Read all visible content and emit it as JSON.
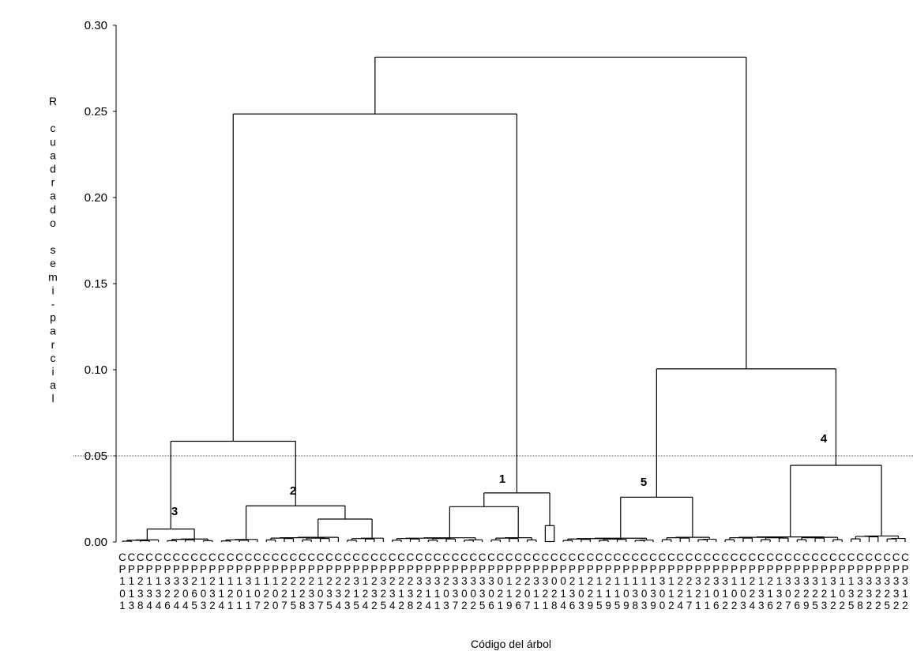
{
  "chart_data": {
    "type": "dendrogram",
    "ylabel": "R cuadrado semi-parcial",
    "xlabel": "Código del árbol",
    "ylim": [
      0,
      0.3
    ],
    "yticks": [
      "0.00",
      "0.05",
      "0.10",
      "0.15",
      "0.20",
      "0.25",
      "0.30"
    ],
    "cutoff_line": 0.05,
    "leaves": [
      "CP101",
      "CP113",
      "CP238",
      "CP134",
      "CP134",
      "CP326",
      "CP324",
      "CP304",
      "CP265",
      "CP103",
      "CP232",
      "CP114",
      "CP121",
      "CP101",
      "CP311",
      "CP107",
      "CP122",
      "CP100",
      "CP227",
      "CP215",
      "CP228",
      "CP233",
      "CP107",
      "CP235",
      "CP234",
      "CP223",
      "CP315",
      "CP124",
      "CP232",
      "CP325",
      "CP234",
      "CP212",
      "CP238",
      "CP322",
      "CP314",
      "CP311",
      "CP203",
      "CP337",
      "CP302",
      "CP302",
      "CP335",
      "CP306",
      "CP021",
      "CP119",
      "CP226",
      "CP207",
      "CP311",
      "CP321",
      "CP028",
      "CP014",
      "CP236",
      "CP103",
      "CP229",
      "CP115",
      "CP219",
      "CP115",
      "CP109",
      "CP138",
      "CP103",
      "CP139",
      "CP300",
      "CP112",
      "CP224",
      "CP217",
      "CP321",
      "CP211",
      "CP306",
      "CP312",
      "CP102",
      "CP103",
      "CP224",
      "CP133",
      "CP216",
      "CP132",
      "CP307",
      "CP326",
      "CP329",
      "CP325",
      "CP123",
      "CP312",
      "CP102",
      "CP135",
      "CP328",
      "CP332",
      "CP322",
      "CP325",
      "CP332",
      "CP312"
    ],
    "merges": [
      {
        "label": "3",
        "height": 0.0075
      },
      {
        "label": "2",
        "height": 0.021
      },
      {
        "label": "",
        "height": 0.0585
      },
      {
        "label": "1",
        "height": 0.0285
      },
      {
        "label": "",
        "height": 0.2485
      },
      {
        "label": "5",
        "height": 0.026
      },
      {
        "label": "4",
        "height": 0.0445
      },
      {
        "label": "",
        "height": 0.1005
      },
      {
        "label": "",
        "height": 0.2815
      }
    ]
  }
}
